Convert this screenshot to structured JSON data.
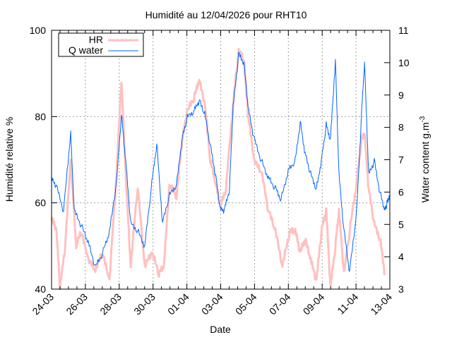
{
  "chart_data": {
    "type": "line",
    "title": "Humidité au 12/04/2026 pour RHT10",
    "xlabel": "Date",
    "ylabel": "Humidité relative %",
    "y2label": "Water content g.m",
    "y2label_sup": "-3",
    "xlim": [
      0,
      20
    ],
    "ylim": [
      40,
      100
    ],
    "y2lim": [
      3,
      11
    ],
    "x_unit": "days since 24-03",
    "xticks": [
      {
        "v": 0,
        "label": "24-03"
      },
      {
        "v": 2,
        "label": "26-03"
      },
      {
        "v": 4,
        "label": "28-03"
      },
      {
        "v": 6,
        "label": "30-03"
      },
      {
        "v": 8,
        "label": "01-04"
      },
      {
        "v": 10,
        "label": "03-04"
      },
      {
        "v": 12,
        "label": "05-04"
      },
      {
        "v": 14,
        "label": "07-04"
      },
      {
        "v": 16,
        "label": "09-04"
      },
      {
        "v": 18,
        "label": "11-04"
      },
      {
        "v": 20,
        "label": "13-04"
      }
    ],
    "yticks": [
      {
        "v": 40,
        "label": "40"
      },
      {
        "v": 60,
        "label": "60"
      },
      {
        "v": 80,
        "label": "80"
      },
      {
        "v": 100,
        "label": "100"
      }
    ],
    "y2ticks": [
      {
        "v": 3,
        "label": "3"
      },
      {
        "v": 4,
        "label": "4"
      },
      {
        "v": 5,
        "label": "5"
      },
      {
        "v": 6,
        "label": "6"
      },
      {
        "v": 7,
        "label": "7"
      },
      {
        "v": 8,
        "label": "8"
      },
      {
        "v": 9,
        "label": "9"
      },
      {
        "v": 10,
        "label": "10"
      },
      {
        "v": 11,
        "label": "11"
      }
    ],
    "grid": true,
    "legend": "top-left",
    "series": [
      {
        "name": "HR",
        "axis": "left",
        "color": "#ffc0c0",
        "x": [
          0,
          0.29,
          0.5,
          0.79,
          1.13,
          1.46,
          1.75,
          2.17,
          2.59,
          3.01,
          3.42,
          3.84,
          4.13,
          4.38,
          4.68,
          5.09,
          5.51,
          5.93,
          6.35,
          6.64,
          6.97,
          7.39,
          7.72,
          8.02,
          8.43,
          8.73,
          9.06,
          9.39,
          9.69,
          9.98,
          10.31,
          10.73,
          11.06,
          11.36,
          11.65,
          11.98,
          12.4,
          12.82,
          13.24,
          13.65,
          14.07,
          14.41,
          14.7,
          14.99,
          15.32,
          15.66,
          15.95,
          16.24,
          16.49,
          16.78,
          16.99,
          17.29,
          17.62,
          18.04,
          18.33,
          18.5,
          18.75,
          19.08,
          19.42,
          19.71
        ],
        "y": [
          56.3,
          53.1,
          40,
          49.0,
          69.4,
          49.8,
          53.1,
          46.5,
          44.1,
          48.2,
          41.6,
          66.2,
          88.2,
          66.2,
          44.9,
          63.7,
          44.9,
          48.2,
          43.3,
          44.9,
          63.7,
          61.3,
          74.3,
          80.9,
          84.1,
          88.2,
          82.5,
          69.4,
          64.5,
          58.8,
          62.9,
          82.5,
          94.8,
          93.1,
          79.2,
          69.4,
          67.0,
          58.0,
          53.1,
          44.9,
          53.1,
          53.1,
          48.2,
          51.4,
          46.5,
          41.6,
          53.1,
          58.0,
          40,
          49.8,
          58.0,
          43.3,
          53.1,
          64.5,
          74.3,
          76.0,
          62.9,
          54.7,
          51.4,
          43.3
        ]
      },
      {
        "name": "Q water",
        "axis": "right",
        "color": "#0066ff",
        "x": [
          0,
          0.29,
          0.71,
          1.13,
          1.34,
          1.75,
          2.17,
          2.59,
          3.01,
          3.42,
          3.84,
          4.13,
          4.38,
          4.68,
          5.09,
          5.51,
          5.93,
          6.22,
          6.56,
          6.97,
          7.39,
          7.72,
          8.02,
          8.43,
          8.73,
          9.06,
          9.39,
          9.69,
          9.98,
          10.23,
          10.52,
          10.73,
          11.06,
          11.36,
          11.65,
          11.98,
          12.4,
          12.82,
          13.24,
          13.57,
          13.99,
          14.41,
          14.7,
          14.99,
          15.32,
          15.66,
          15.95,
          16.24,
          16.49,
          16.78,
          16.99,
          17.29,
          17.62,
          18.04,
          18.33,
          18.5,
          18.75,
          19.08,
          19.42,
          19.71,
          19.83,
          19.96
        ],
        "y": [
          6.38,
          6.16,
          5.4,
          7.8,
          5.4,
          4.96,
          4.42,
          3.65,
          4.09,
          4.74,
          6.27,
          8.38,
          6.97,
          5.0,
          4.79,
          4.31,
          6.27,
          7.47,
          5.03,
          5.88,
          6.22,
          7.63,
          8.29,
          8.5,
          8.83,
          8.39,
          7.41,
          6.54,
          5.44,
          5.44,
          6.1,
          8.61,
          10.24,
          10.02,
          8.5,
          7.63,
          6.97,
          6.43,
          6.1,
          5.77,
          6.65,
          6.97,
          8.17,
          7.19,
          6.54,
          6.1,
          6.97,
          8.06,
          7.63,
          10.08,
          6.54,
          4.79,
          3.54,
          5.4,
          8.45,
          10.02,
          6.54,
          6.97,
          5.99,
          5.44,
          5.66,
          5.9
        ]
      }
    ]
  }
}
